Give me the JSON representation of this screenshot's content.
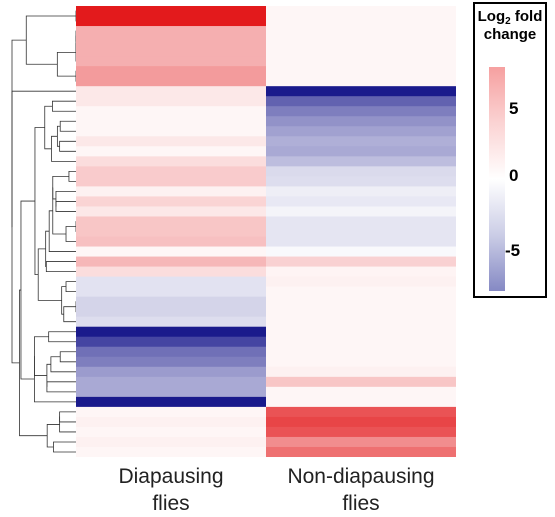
{
  "chart_data": {
    "type": "heatmap",
    "columns": [
      {
        "line1": "Diapausing",
        "line2": "flies"
      },
      {
        "line1": "Non-diapausing",
        "line2": "flies"
      }
    ],
    "legend": {
      "title_prefix": "Log",
      "title_subscript": "2",
      "title_line1_suffix": " fold",
      "title_line2": "change",
      "ticks": [
        "5",
        "0",
        "-5"
      ],
      "tick_values": [
        5,
        0,
        -5
      ],
      "range": [
        -8,
        8
      ]
    },
    "colors": {
      "high": "#e31a1c",
      "mid": "#ffffff",
      "low": "#1a1a8c"
    },
    "rows": [
      [
        8,
        0.3
      ],
      [
        8,
        0.3
      ],
      [
        2.8,
        0.3
      ],
      [
        2.8,
        0.3
      ],
      [
        2.8,
        0.3
      ],
      [
        2.8,
        0.3
      ],
      [
        3.5,
        0.3
      ],
      [
        3.5,
        0.3
      ],
      [
        0.8,
        -8
      ],
      [
        0.8,
        -5.5
      ],
      [
        0.3,
        -4.5
      ],
      [
        0.3,
        -3.8
      ],
      [
        0.3,
        -3.3
      ],
      [
        0.8,
        -2.8
      ],
      [
        0.3,
        -3
      ],
      [
        1.2,
        -2.3
      ],
      [
        1.8,
        -1.3
      ],
      [
        1.8,
        -1.2
      ],
      [
        0.5,
        -0.6
      ],
      [
        1.5,
        -0.8
      ],
      [
        0.8,
        -0.4
      ],
      [
        2,
        -0.9
      ],
      [
        2,
        -0.9
      ],
      [
        2.2,
        -0.9
      ],
      [
        0.3,
        -0.2
      ],
      [
        2.5,
        1.6
      ],
      [
        1.2,
        0.4
      ],
      [
        -1,
        0.5
      ],
      [
        -1,
        0.3
      ],
      [
        -1.5,
        0.3
      ],
      [
        -1.5,
        0.3
      ],
      [
        -1.2,
        0.3
      ],
      [
        -8,
        0.3
      ],
      [
        -6.5,
        0.3
      ],
      [
        -5,
        0.3
      ],
      [
        -4.5,
        0.3
      ],
      [
        -3.5,
        0.5
      ],
      [
        -3,
        2
      ],
      [
        -3,
        0.3
      ],
      [
        -8,
        0.3
      ],
      [
        0.3,
        6
      ],
      [
        0.5,
        6.5
      ],
      [
        0.3,
        6
      ],
      [
        0.5,
        4
      ],
      [
        0.3,
        5
      ]
    ]
  }
}
